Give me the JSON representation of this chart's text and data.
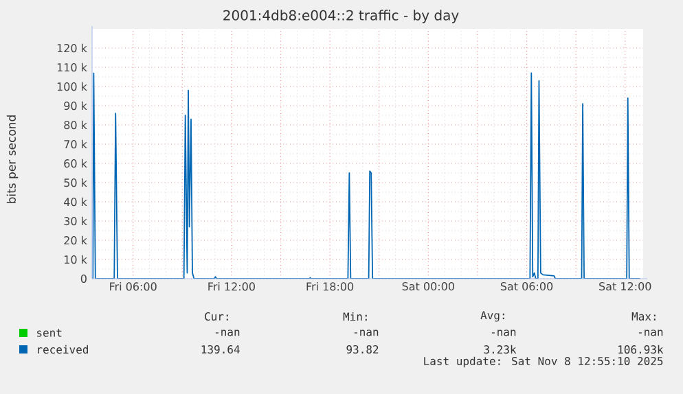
{
  "chart_data": {
    "type": "line",
    "title": "2001:4db8:e004::2 traffic - by day",
    "ylabel": "bits per second",
    "xlim": [
      "2025-11-07T03:30",
      "2025-11-08T13:06"
    ],
    "ylim": [
      0,
      130000
    ],
    "xticks": [
      {
        "value": "2025-11-07T06:00",
        "label": "Fri 06:00"
      },
      {
        "value": "2025-11-07T09:00",
        "label": null
      },
      {
        "value": "2025-11-07T12:00",
        "label": "Fri 12:00"
      },
      {
        "value": "2025-11-07T15:00",
        "label": null
      },
      {
        "value": "2025-11-07T18:00",
        "label": "Fri 18:00"
      },
      {
        "value": "2025-11-07T21:00",
        "label": null
      },
      {
        "value": "2025-11-08T00:00",
        "label": "Sat 00:00"
      },
      {
        "value": "2025-11-08T03:00",
        "label": null
      },
      {
        "value": "2025-11-08T06:00",
        "label": "Sat 06:00"
      },
      {
        "value": "2025-11-08T09:00",
        "label": null
      },
      {
        "value": "2025-11-08T12:00",
        "label": "Sat 12:00"
      }
    ],
    "yticks": [
      {
        "value": 0,
        "label": "0"
      },
      {
        "value": 10000,
        "label": "10 k"
      },
      {
        "value": 20000,
        "label": "20 k"
      },
      {
        "value": 30000,
        "label": "30 k"
      },
      {
        "value": 40000,
        "label": "40 k"
      },
      {
        "value": 50000,
        "label": "50 k"
      },
      {
        "value": 60000,
        "label": "60 k"
      },
      {
        "value": 70000,
        "label": "70 k"
      },
      {
        "value": 80000,
        "label": "80 k"
      },
      {
        "value": 90000,
        "label": "90 k"
      },
      {
        "value": 100000,
        "label": "100 k"
      },
      {
        "value": 110000,
        "label": "110 k"
      },
      {
        "value": 120000,
        "label": "120 k"
      }
    ],
    "grid": true,
    "legend": "bottom",
    "line_style": "solid",
    "marker": "none",
    "x": [
      "2025-11-07T03:30",
      "2025-11-07T03:33",
      "2025-11-07T03:36",
      "2025-11-07T03:42",
      "2025-11-07T04:51",
      "2025-11-07T04:56",
      "2025-11-07T05:03",
      "2025-11-07T09:06",
      "2025-11-07T09:11",
      "2025-11-07T09:18",
      "2025-11-07T09:22",
      "2025-11-07T09:26",
      "2025-11-07T09:32",
      "2025-11-07T09:37",
      "2025-11-07T09:43",
      "2025-11-07T10:57",
      "2025-11-07T11:01",
      "2025-11-07T11:06",
      "2025-11-07T16:45",
      "2025-11-07T16:48",
      "2025-11-07T16:51",
      "2025-11-07T19:06",
      "2025-11-07T19:11",
      "2025-11-07T19:16",
      "2025-11-07T20:22",
      "2025-11-07T20:26",
      "2025-11-07T20:31",
      "2025-11-07T20:36",
      "2025-11-08T06:12",
      "2025-11-08T06:17",
      "2025-11-08T06:22",
      "2025-11-08T06:28",
      "2025-11-08T06:33",
      "2025-11-08T06:41",
      "2025-11-08T06:45",
      "2025-11-08T06:51",
      "2025-11-08T07:00",
      "2025-11-08T07:40",
      "2025-11-08T07:45",
      "2025-11-08T09:21",
      "2025-11-08T09:25",
      "2025-11-08T09:30",
      "2025-11-08T12:06",
      "2025-11-08T12:10",
      "2025-11-08T12:15",
      "2025-11-08T12:54"
    ],
    "series": [
      {
        "name": "sent",
        "color": "#00cc00",
        "values": [
          null,
          null,
          null,
          null,
          null,
          null,
          null,
          null,
          null,
          null,
          null,
          null,
          null,
          null,
          null,
          null,
          null,
          null,
          null,
          null,
          null,
          null,
          null,
          null,
          null,
          null,
          null,
          null,
          null,
          null,
          null,
          null,
          null,
          null,
          null,
          null,
          null,
          null,
          null,
          null,
          null,
          null,
          null,
          null,
          null,
          null
        ]
      },
      {
        "name": "received",
        "color": "#0066b3",
        "values": [
          0,
          0,
          106900,
          0,
          0,
          86000,
          0,
          0,
          85000,
          3000,
          98000,
          27000,
          83000,
          3000,
          0,
          0,
          1000,
          0,
          0,
          500,
          0,
          0,
          55000,
          0,
          0,
          56000,
          55000,
          0,
          0,
          107000,
          1000,
          3000,
          0,
          0,
          103000,
          3000,
          2000,
          1500,
          0,
          0,
          91000,
          0,
          0,
          94000,
          0,
          0
        ]
      }
    ],
    "annotations": [
      "Cur:",
      "Min:",
      "Avg:",
      "Max:",
      "-nan",
      "-nan",
      "-nan",
      "-nan",
      "139.64",
      "93.82",
      "3.23k",
      "106.93k",
      "Last update: Sat Nov  8 12:55:10 2025"
    ]
  }
}
